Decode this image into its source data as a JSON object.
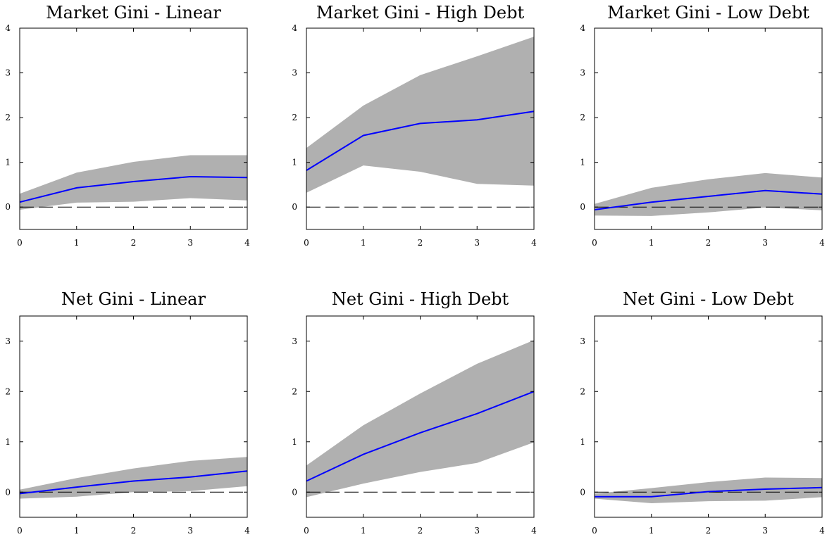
{
  "chart_data": [
    {
      "type": "area",
      "title": "Market Gini - Linear",
      "x": [
        0,
        1,
        2,
        3,
        4
      ],
      "ylim": [
        -0.5,
        4
      ],
      "xticks": [
        "0",
        "1",
        "2",
        "3",
        "4"
      ],
      "yticks": [
        "0",
        "1",
        "2",
        "3",
        "4"
      ],
      "series": [
        {
          "values": [
            0.11,
            0.43,
            0.57,
            0.68,
            0.66
          ]
        },
        {
          "values": [
            -0.06,
            0.1,
            0.12,
            0.2,
            0.15
          ]
        },
        {
          "values": [
            0.3,
            0.77,
            1.01,
            1.16,
            1.16
          ]
        }
      ],
      "reference_line": 0
    },
    {
      "type": "area",
      "title": "Market Gini - High Debt",
      "x": [
        0,
        1,
        2,
        3,
        4
      ],
      "ylim": [
        -0.5,
        4
      ],
      "xticks": [
        "0",
        "1",
        "2",
        "3",
        "4"
      ],
      "yticks": [
        "0",
        "1",
        "2",
        "3",
        "4"
      ],
      "series": [
        {
          "values": [
            0.82,
            1.6,
            1.87,
            1.95,
            2.14
          ]
        },
        {
          "values": [
            0.32,
            0.93,
            0.79,
            0.52,
            0.48
          ]
        },
        {
          "values": [
            1.32,
            2.27,
            2.95,
            3.37,
            3.81
          ]
        }
      ],
      "reference_line": 0
    },
    {
      "type": "area",
      "title": "Market Gini - Low Debt",
      "x": [
        0,
        1,
        2,
        3,
        4
      ],
      "ylim": [
        -0.5,
        4
      ],
      "xticks": [
        "0",
        "1",
        "2",
        "3",
        "4"
      ],
      "yticks": [
        "0",
        "1",
        "2",
        "3",
        "4"
      ],
      "series": [
        {
          "values": [
            -0.06,
            0.11,
            0.24,
            0.37,
            0.29
          ]
        },
        {
          "values": [
            -0.19,
            -0.2,
            -0.12,
            -0.01,
            -0.07
          ]
        },
        {
          "values": [
            0.07,
            0.43,
            0.62,
            0.76,
            0.66
          ]
        }
      ],
      "reference_line": 0
    },
    {
      "type": "area",
      "title": "Net Gini - Linear",
      "x": [
        0,
        1,
        2,
        3,
        4
      ],
      "ylim": [
        -0.5,
        3.5
      ],
      "xticks": [
        "0",
        "1",
        "2",
        "3",
        "4"
      ],
      "yticks": [
        "0",
        "1",
        "2",
        "3"
      ],
      "series": [
        {
          "values": [
            -0.03,
            0.1,
            0.22,
            0.3,
            0.42
          ]
        },
        {
          "values": [
            -0.13,
            -0.09,
            0.0,
            0.02,
            0.12
          ]
        },
        {
          "values": [
            0.05,
            0.28,
            0.47,
            0.62,
            0.7
          ]
        }
      ],
      "reference_line": 0
    },
    {
      "type": "area",
      "title": "Net Gini - High Debt",
      "x": [
        0,
        1,
        2,
        3,
        4
      ],
      "ylim": [
        -0.5,
        3.5
      ],
      "xticks": [
        "0",
        "1",
        "2",
        "3",
        "4"
      ],
      "yticks": [
        "0",
        "1",
        "2",
        "3"
      ],
      "series": [
        {
          "values": [
            0.22,
            0.75,
            1.18,
            1.56,
            2.0
          ]
        },
        {
          "values": [
            -0.1,
            0.17,
            0.4,
            0.58,
            0.99
          ]
        },
        {
          "values": [
            0.53,
            1.33,
            1.96,
            2.55,
            3.02
          ]
        }
      ],
      "reference_line": 0
    },
    {
      "type": "area",
      "title": "Net Gini - Low Debt",
      "x": [
        0,
        1,
        2,
        3,
        4
      ],
      "ylim": [
        -0.5,
        3.5
      ],
      "xticks": [
        "0",
        "1",
        "2",
        "3",
        "4"
      ],
      "yticks": [
        "0",
        "1",
        "2",
        "3"
      ],
      "series": [
        {
          "values": [
            -0.09,
            -0.09,
            0.01,
            0.06,
            0.09
          ]
        },
        {
          "values": [
            -0.13,
            -0.22,
            -0.18,
            -0.17,
            -0.1
          ]
        },
        {
          "values": [
            -0.03,
            0.08,
            0.2,
            0.29,
            0.28
          ]
        }
      ],
      "reference_line": 0
    }
  ],
  "colors": {
    "irf_line": "#0000ff",
    "confidence_band": "#b0b0b0",
    "zero_line": "#000000"
  }
}
